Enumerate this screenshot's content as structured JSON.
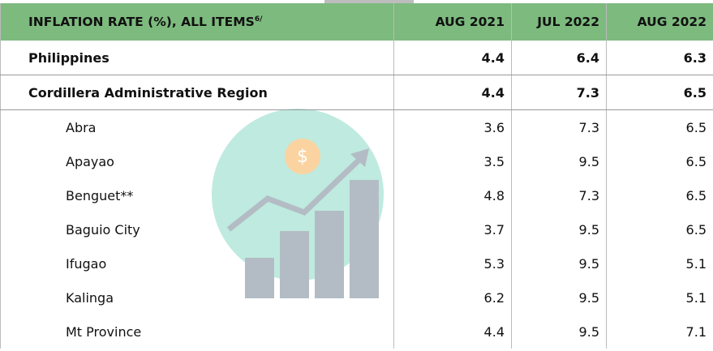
{
  "table": {
    "header": {
      "title": "INFLATION RATE (%), ALL ITEMS",
      "note": "6/",
      "columns": [
        "AUG 2021",
        "JUL 2022",
        "AUG 2022"
      ]
    },
    "rows": [
      [
        "Philippines",
        4.4,
        6.4,
        6.3
      ],
      [
        "Cordillera Administrative Region",
        4.4,
        7.3,
        6.5
      ],
      [
        "Abra",
        3.6,
        7.3,
        6.5
      ],
      [
        "Apayao",
        3.5,
        9.5,
        6.5
      ],
      [
        "Benguet**",
        4.8,
        7.3,
        6.5
      ],
      [
        "Baguio City",
        3.7,
        9.5,
        6.5
      ],
      [
        "Ifugao",
        5.3,
        9.5,
        5.1
      ],
      [
        "Kalinga",
        6.2,
        9.5,
        5.1
      ],
      [
        "Mt Province",
        4.4,
        9.5,
        7.1
      ]
    ]
  }
}
